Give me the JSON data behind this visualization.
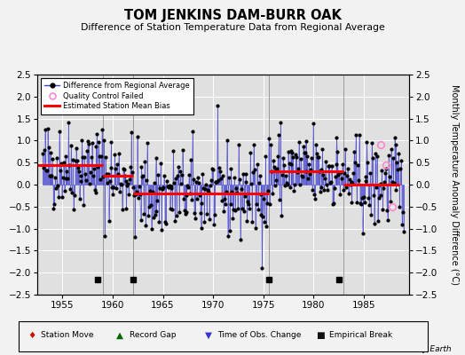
{
  "title": "TOM JENKINS DAM-BURR OAK",
  "subtitle": "Difference of Station Temperature Data from Regional Average",
  "ylabel": "Monthly Temperature Anomaly Difference (°C)",
  "xlim": [
    1952.5,
    1989.5
  ],
  "ylim": [
    -2.5,
    2.5
  ],
  "yticks": [
    -2.5,
    -2,
    -1.5,
    -1,
    -0.5,
    0,
    0.5,
    1,
    1.5,
    2,
    2.5
  ],
  "xticks": [
    1955,
    1960,
    1965,
    1970,
    1975,
    1980,
    1985
  ],
  "bg_color": "#e0e0e0",
  "line_color": "#4444cc",
  "dot_color": "#000000",
  "bias_color": "#ff0000",
  "qc_color_edge": "#ff88cc",
  "bias_segments": [
    {
      "start": 1952.5,
      "end": 1959.0,
      "value": 0.45
    },
    {
      "start": 1959.0,
      "end": 1962.0,
      "value": 0.2
    },
    {
      "start": 1962.0,
      "end": 1975.5,
      "value": -0.2
    },
    {
      "start": 1975.5,
      "end": 1983.0,
      "value": 0.3
    },
    {
      "start": 1983.0,
      "end": 1988.5,
      "value": 0.0
    }
  ],
  "vline_years": [
    1959.0,
    1962.0,
    1975.5,
    1983.0
  ],
  "empirical_break_years": [
    1958.5,
    1962.0,
    1975.5,
    1982.5
  ],
  "qc_fail_points": [
    [
      1986.7,
      0.9
    ],
    [
      1987.2,
      0.45
    ],
    [
      1987.8,
      -0.5
    ]
  ],
  "seed": 42,
  "start_year": 1953,
  "end_year": 1988
}
